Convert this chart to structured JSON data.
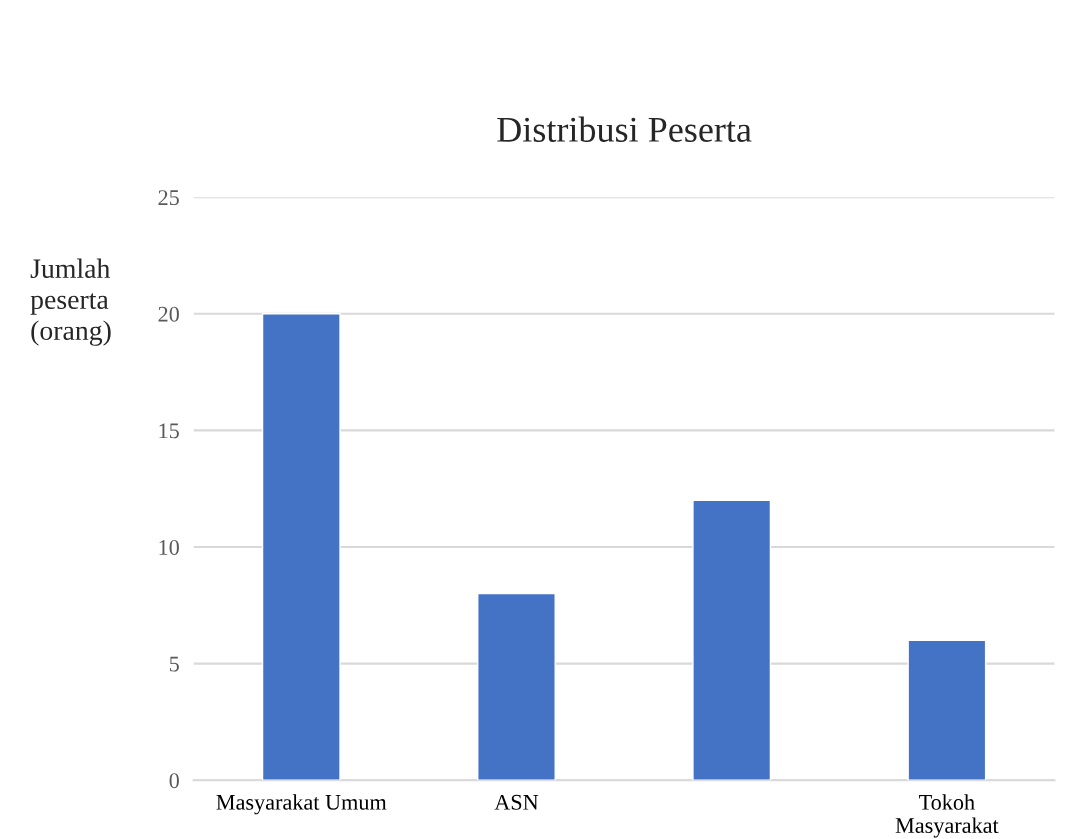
{
  "chart_data": {
    "type": "bar",
    "title": "Distribusi Peserta",
    "ylabel": "Jumlah\npeserta\n(orang)",
    "categories": [
      "Masyarakat Umum",
      "ASN",
      null,
      "Tokoh\nMasyarakat"
    ],
    "values": [
      20,
      8,
      12,
      6
    ],
    "color": "#4472c4",
    "ylim": [
      0,
      25
    ],
    "yticks": [
      0,
      5,
      10,
      15,
      20,
      25
    ],
    "grid": "y"
  }
}
